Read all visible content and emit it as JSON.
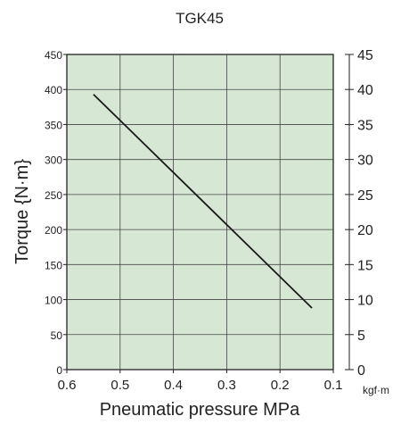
{
  "chart_data": {
    "type": "line",
    "title": "TGK45",
    "xlabel": "Pneumatic pressure MPa",
    "ylabel": "Torque {N·m}",
    "y2label": "kgf·m",
    "xlim": [
      0.6,
      0.1
    ],
    "ylim": [
      0,
      450
    ],
    "y2lim": [
      0,
      45
    ],
    "x_ticks": [
      "0.6",
      "0.5",
      "0.4",
      "0.3",
      "0.2",
      "0.1"
    ],
    "x_tick_values": [
      0.6,
      0.5,
      0.4,
      0.3,
      0.2,
      0.1
    ],
    "y_ticks": [
      "0",
      "50",
      "100",
      "150",
      "200",
      "250",
      "300",
      "350",
      "400",
      "450"
    ],
    "y_tick_values": [
      0,
      50,
      100,
      150,
      200,
      250,
      300,
      350,
      400,
      450
    ],
    "y2_ticks": [
      "0",
      "5",
      "10",
      "15",
      "20",
      "25",
      "30",
      "35",
      "40",
      "45"
    ],
    "y2_tick_values": [
      0,
      5,
      10,
      15,
      20,
      25,
      30,
      35,
      40,
      45
    ],
    "grid": true,
    "series": [
      {
        "values": [
          {
            "x": 0.55,
            "y": 393
          },
          {
            "x": 0.14,
            "y": 88
          }
        ]
      }
    ],
    "colors": {
      "plot_background": "#d6e8d4",
      "line": "#1a1a1a",
      "grid": "#444444",
      "frame": "#222222"
    }
  }
}
